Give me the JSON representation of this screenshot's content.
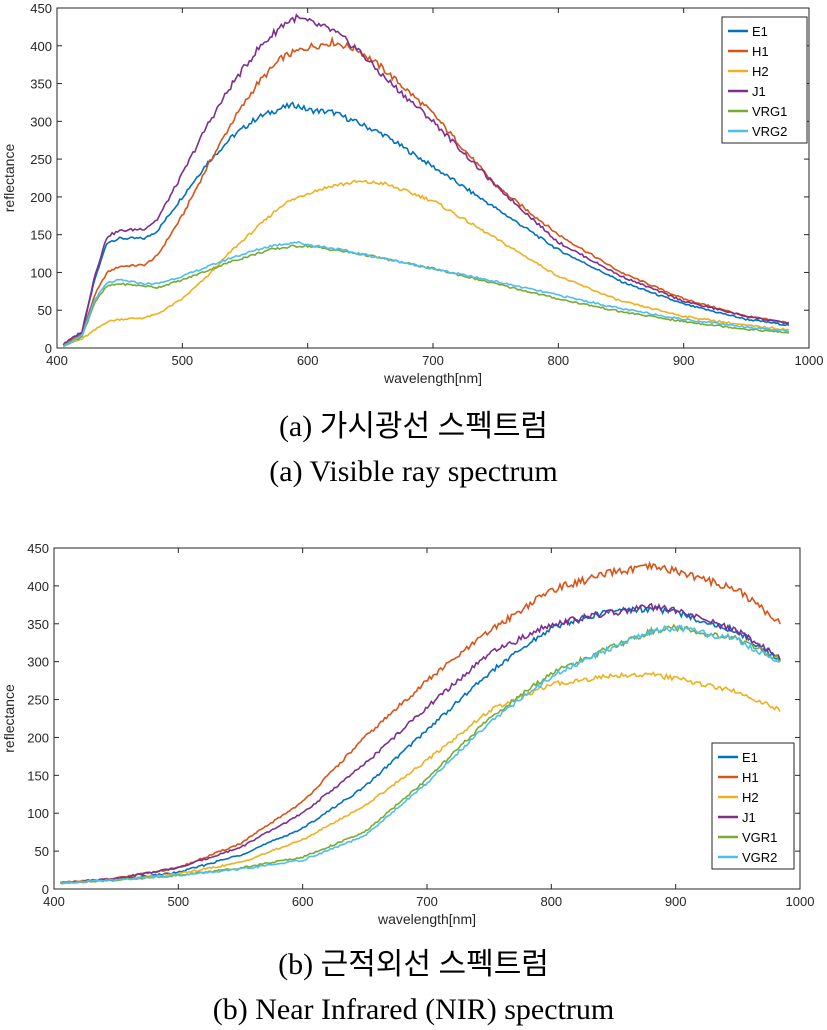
{
  "captions": {
    "a_korean": "(a) 가시광선 스펙트럼",
    "a_english": "(a) Visible ray spectrum",
    "b_korean": "(b) 근적외선 스펙트럼",
    "b_english": "(b) Near Infrared (NIR) spectrum"
  },
  "chart_data": [
    {
      "type": "line",
      "title": "",
      "xlabel": "wavelength[nm]",
      "ylabel": "reflectance",
      "xlim": [
        400,
        1000
      ],
      "ylim": [
        0,
        450
      ],
      "xticks": [
        400,
        500,
        600,
        700,
        800,
        900,
        1000
      ],
      "yticks": [
        0,
        50,
        100,
        150,
        200,
        250,
        300,
        350,
        400,
        450
      ],
      "legend_position": "top-right",
      "series": [
        {
          "name": "E1",
          "color": "#0072BD",
          "x": [
            405,
            420,
            430,
            440,
            450,
            470,
            480,
            500,
            520,
            540,
            560,
            580,
            590,
            600,
            620,
            640,
            660,
            700,
            750,
            800,
            850,
            900,
            950,
            985
          ],
          "y": [
            5,
            20,
            90,
            140,
            145,
            145,
            155,
            200,
            245,
            280,
            305,
            318,
            322,
            315,
            312,
            298,
            283,
            240,
            185,
            130,
            88,
            58,
            38,
            30
          ]
        },
        {
          "name": "H1",
          "color": "#D95319",
          "x": [
            405,
            420,
            430,
            440,
            450,
            470,
            480,
            500,
            520,
            540,
            560,
            580,
            600,
            620,
            640,
            660,
            700,
            750,
            800,
            850,
            900,
            950,
            985
          ],
          "y": [
            5,
            18,
            70,
            100,
            108,
            110,
            122,
            175,
            240,
            300,
            350,
            385,
            398,
            405,
            395,
            370,
            310,
            215,
            150,
            100,
            65,
            42,
            33
          ]
        },
        {
          "name": "H2",
          "color": "#EDB120",
          "x": [
            405,
            420,
            440,
            450,
            470,
            480,
            500,
            520,
            540,
            560,
            580,
            600,
            620,
            640,
            660,
            700,
            750,
            800,
            850,
            900,
            950,
            985
          ],
          "y": [
            3,
            12,
            35,
            38,
            40,
            45,
            65,
            95,
            130,
            160,
            190,
            205,
            215,
            220,
            218,
            195,
            145,
            95,
            62,
            42,
            30,
            24
          ]
        },
        {
          "name": "J1",
          "color": "#7E2F8E",
          "x": [
            405,
            420,
            430,
            440,
            450,
            470,
            480,
            500,
            520,
            540,
            560,
            580,
            590,
            600,
            620,
            640,
            660,
            700,
            750,
            800,
            850,
            900,
            950,
            985
          ],
          "y": [
            5,
            22,
            95,
            148,
            155,
            158,
            170,
            230,
            295,
            350,
            395,
            428,
            437,
            432,
            420,
            395,
            360,
            300,
            215,
            140,
            95,
            62,
            42,
            32
          ]
        },
        {
          "name": "VRG1",
          "color": "#77AC30",
          "x": [
            405,
            420,
            430,
            440,
            450,
            470,
            480,
            500,
            540,
            570,
            590,
            600,
            620,
            650,
            700,
            750,
            800,
            850,
            900,
            950,
            985
          ],
          "y": [
            3,
            15,
            60,
            82,
            85,
            82,
            80,
            90,
            115,
            130,
            135,
            135,
            130,
            122,
            105,
            85,
            65,
            48,
            35,
            25,
            20
          ]
        },
        {
          "name": "VRG2",
          "color": "#4DBEEE",
          "x": [
            405,
            420,
            430,
            440,
            450,
            470,
            480,
            500,
            540,
            570,
            590,
            600,
            620,
            650,
            700,
            750,
            800,
            850,
            900,
            950,
            985
          ],
          "y": [
            3,
            16,
            64,
            86,
            90,
            85,
            85,
            95,
            120,
            135,
            140,
            137,
            132,
            122,
            105,
            88,
            70,
            52,
            38,
            28,
            22
          ]
        }
      ]
    },
    {
      "type": "line",
      "title": "",
      "xlabel": "wavelength[nm]",
      "ylabel": "reflectance",
      "xlim": [
        400,
        1000
      ],
      "ylim": [
        0,
        450
      ],
      "xticks": [
        400,
        500,
        600,
        700,
        800,
        900,
        1000
      ],
      "yticks": [
        0,
        50,
        100,
        150,
        200,
        250,
        300,
        350,
        400,
        450
      ],
      "legend_position": "bottom-right",
      "series": [
        {
          "name": "E1",
          "color": "#0072BD",
          "x": [
            405,
            450,
            500,
            550,
            600,
            650,
            700,
            750,
            800,
            850,
            880,
            900,
            950,
            985
          ],
          "y": [
            8,
            12,
            22,
            45,
            80,
            135,
            210,
            285,
            345,
            368,
            370,
            365,
            340,
            300
          ]
        },
        {
          "name": "H1",
          "color": "#D95319",
          "x": [
            405,
            450,
            500,
            550,
            600,
            650,
            700,
            750,
            800,
            850,
            880,
            900,
            950,
            985
          ],
          "y": [
            8,
            14,
            28,
            60,
            115,
            200,
            275,
            340,
            395,
            418,
            425,
            420,
            395,
            350
          ]
        },
        {
          "name": "H2",
          "color": "#EDB120",
          "x": [
            405,
            450,
            500,
            550,
            600,
            650,
            700,
            750,
            800,
            850,
            880,
            900,
            950,
            985
          ],
          "y": [
            8,
            12,
            20,
            35,
            65,
            110,
            170,
            235,
            270,
            282,
            283,
            278,
            260,
            235
          ]
        },
        {
          "name": "J1",
          "color": "#7E2F8E",
          "x": [
            405,
            450,
            500,
            550,
            600,
            650,
            700,
            750,
            800,
            850,
            880,
            900,
            950,
            985
          ],
          "y": [
            8,
            14,
            28,
            55,
            100,
            165,
            240,
            310,
            350,
            365,
            372,
            368,
            340,
            305
          ]
        },
        {
          "name": "VGR1",
          "color": "#77AC30",
          "x": [
            405,
            450,
            500,
            550,
            600,
            650,
            700,
            750,
            800,
            850,
            880,
            900,
            950,
            985
          ],
          "y": [
            8,
            12,
            18,
            28,
            42,
            75,
            145,
            225,
            285,
            320,
            340,
            345,
            330,
            302
          ]
        },
        {
          "name": "VGR2",
          "color": "#4DBEEE",
          "x": [
            405,
            450,
            500,
            550,
            600,
            650,
            700,
            750,
            800,
            850,
            880,
            900,
            950,
            985
          ],
          "y": [
            8,
            12,
            18,
            26,
            38,
            70,
            140,
            220,
            280,
            320,
            340,
            345,
            328,
            298
          ]
        }
      ]
    }
  ]
}
